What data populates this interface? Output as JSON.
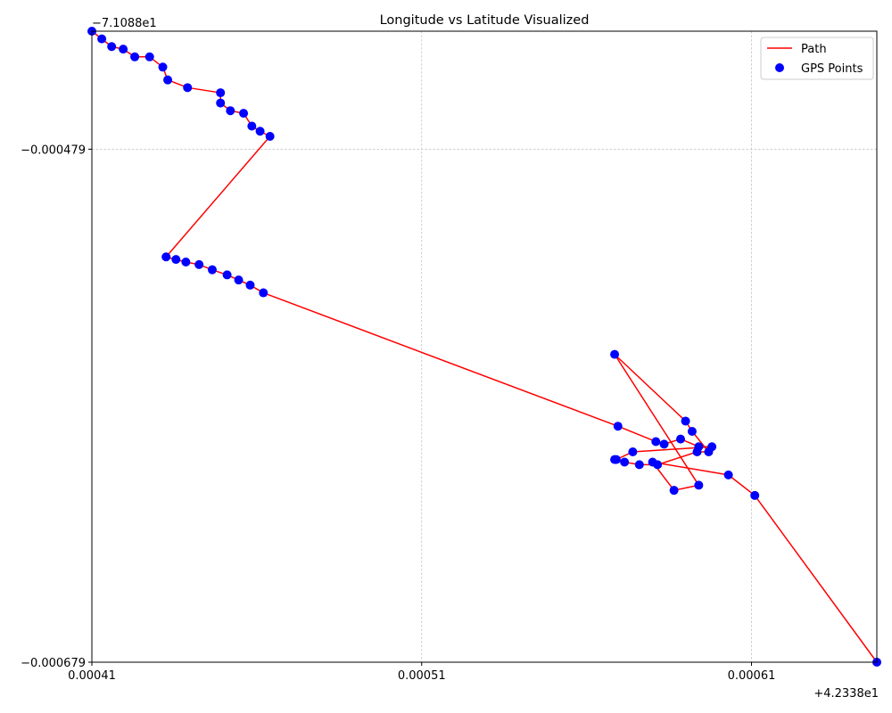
{
  "chart_data": {
    "type": "scatter",
    "title": "Longitude vs Latitude Visualized",
    "xlabel": "",
    "ylabel": "",
    "xlim": [
      0.00041,
      0.000648
    ],
    "ylim": [
      -0.000679,
      -0.000433
    ],
    "x_offset_label": "+4.2338e1",
    "y_offset_label": "−7.1088e1",
    "x_ticks": [
      {
        "value": 0.00041,
        "label": "0.00041"
      },
      {
        "value": 0.00051,
        "label": "0.00051"
      },
      {
        "value": 0.00061,
        "label": "0.00061"
      }
    ],
    "y_ticks": [
      {
        "value": -0.000479,
        "label": "−0.000479"
      },
      {
        "value": -0.000679,
        "label": "−0.000679"
      }
    ],
    "grid": true,
    "legend_position": "top-right",
    "legend": [
      "Path",
      "GPS Points"
    ],
    "series": [
      {
        "name": "Path",
        "kind": "line",
        "color": "#ff0000",
        "points": [
          [
            0.00041,
            -0.000433
          ],
          [
            0.000413,
            -0.000436
          ],
          [
            0.000416,
            -0.000439
          ],
          [
            0.0004195,
            -0.00044
          ],
          [
            0.000423,
            -0.000443
          ],
          [
            0.0004275,
            -0.000443
          ],
          [
            0.0004315,
            -0.000447
          ],
          [
            0.000433,
            -0.000452
          ],
          [
            0.000439,
            -0.000455
          ],
          [
            0.000449,
            -0.000457
          ],
          [
            0.000449,
            -0.000461
          ],
          [
            0.000452,
            -0.000464
          ],
          [
            0.000456,
            -0.000465
          ],
          [
            0.0004585,
            -0.00047
          ],
          [
            0.000461,
            -0.000472
          ],
          [
            0.000464,
            -0.000474
          ],
          [
            0.0004325,
            -0.000521
          ],
          [
            0.0004355,
            -0.000522
          ],
          [
            0.0004385,
            -0.000523
          ],
          [
            0.0004425,
            -0.000524
          ],
          [
            0.0004465,
            -0.000526
          ],
          [
            0.000451,
            -0.000528
          ],
          [
            0.0004545,
            -0.00053
          ],
          [
            0.000458,
            -0.000532
          ],
          [
            0.000462,
            -0.000535
          ],
          [
            0.0005695,
            -0.000587
          ],
          [
            0.000581,
            -0.000593
          ],
          [
            0.0005835,
            -0.000594
          ],
          [
            0.0005885,
            -0.000592
          ],
          [
            0.000594,
            -0.000595
          ],
          [
            0.000598,
            -0.000595
          ],
          [
            0.000574,
            -0.000597
          ],
          [
            0.000569,
            -0.0006
          ],
          [
            0.0005685,
            -0.0006
          ],
          [
            0.0005715,
            -0.000601
          ],
          [
            0.000576,
            -0.000602
          ],
          [
            0.0005815,
            -0.000602
          ],
          [
            0.0005935,
            -0.000597
          ],
          [
            0.000597,
            -0.000597
          ],
          [
            0.000592,
            -0.000589
          ],
          [
            0.00059,
            -0.000585
          ],
          [
            0.0005685,
            -0.000559
          ],
          [
            0.000594,
            -0.00061
          ],
          [
            0.0005865,
            -0.000612
          ],
          [
            0.00058,
            -0.000601
          ],
          [
            0.000603,
            -0.000606
          ],
          [
            0.000611,
            -0.000614
          ],
          [
            0.000648,
            -0.000679
          ]
        ]
      },
      {
        "name": "GPS Points",
        "kind": "scatter",
        "color": "#0000ff",
        "points": [
          [
            0.00041,
            -0.000433
          ],
          [
            0.000413,
            -0.000436
          ],
          [
            0.000416,
            -0.000439
          ],
          [
            0.0004195,
            -0.00044
          ],
          [
            0.000423,
            -0.000443
          ],
          [
            0.0004275,
            -0.000443
          ],
          [
            0.0004315,
            -0.000447
          ],
          [
            0.000433,
            -0.000452
          ],
          [
            0.000439,
            -0.000455
          ],
          [
            0.000449,
            -0.000457
          ],
          [
            0.000449,
            -0.000461
          ],
          [
            0.000452,
            -0.000464
          ],
          [
            0.000456,
            -0.000465
          ],
          [
            0.0004585,
            -0.00047
          ],
          [
            0.000461,
            -0.000472
          ],
          [
            0.000464,
            -0.000474
          ],
          [
            0.0004325,
            -0.000521
          ],
          [
            0.0004355,
            -0.000522
          ],
          [
            0.0004385,
            -0.000523
          ],
          [
            0.0004425,
            -0.000524
          ],
          [
            0.0004465,
            -0.000526
          ],
          [
            0.000451,
            -0.000528
          ],
          [
            0.0004545,
            -0.00053
          ],
          [
            0.000458,
            -0.000532
          ],
          [
            0.000462,
            -0.000535
          ],
          [
            0.0005695,
            -0.000587
          ],
          [
            0.000581,
            -0.000593
          ],
          [
            0.0005835,
            -0.000594
          ],
          [
            0.0005885,
            -0.000592
          ],
          [
            0.000594,
            -0.000595
          ],
          [
            0.000598,
            -0.000595
          ],
          [
            0.000574,
            -0.000597
          ],
          [
            0.000569,
            -0.0006
          ],
          [
            0.0005685,
            -0.0006
          ],
          [
            0.0005715,
            -0.000601
          ],
          [
            0.000576,
            -0.000602
          ],
          [
            0.0005815,
            -0.000602
          ],
          [
            0.0005935,
            -0.000597
          ],
          [
            0.000597,
            -0.000597
          ],
          [
            0.000592,
            -0.000589
          ],
          [
            0.00059,
            -0.000585
          ],
          [
            0.0005685,
            -0.000559
          ],
          [
            0.000594,
            -0.00061
          ],
          [
            0.0005865,
            -0.000612
          ],
          [
            0.00058,
            -0.000601
          ],
          [
            0.000603,
            -0.000606
          ],
          [
            0.000611,
            -0.000614
          ],
          [
            0.000648,
            -0.000679
          ]
        ]
      }
    ]
  }
}
